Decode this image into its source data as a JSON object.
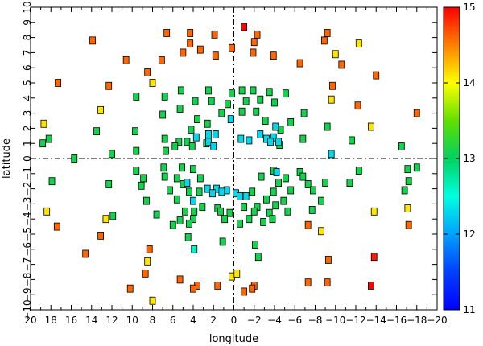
{
  "chart_data": {
    "type": "scatter",
    "title": "",
    "xlabel": "longitude",
    "ylabel": "latitude",
    "xlim": [
      20,
      -20
    ],
    "ylim": [
      -10,
      10
    ],
    "x_ticks": [
      20,
      18,
      16,
      14,
      12,
      10,
      8,
      6,
      4,
      2,
      0,
      -2,
      -4,
      -6,
      -8,
      -10,
      -12,
      -14,
      -16,
      -18,
      -20
    ],
    "x_tick_labels": [
      "20",
      "18",
      "16",
      "14",
      "12",
      "10",
      "8",
      "6",
      "4",
      "2",
      "0",
      "−2",
      "−4",
      "−6",
      "−8",
      "−10",
      "−12",
      "−14",
      "−16",
      "−18",
      "−20"
    ],
    "y_ticks": [
      -10,
      -9,
      -8,
      -7,
      -6,
      -5,
      -4,
      -3,
      -2,
      -1,
      0,
      1,
      2,
      3,
      4,
      5,
      6,
      7,
      8,
      9,
      10
    ],
    "y_tick_labels": [
      "−10",
      "−9",
      "−8",
      "−7",
      "−6",
      "−5",
      "−4",
      "−3",
      "−2",
      "−1",
      "0",
      "1",
      "2",
      "3",
      "4",
      "5",
      "6",
      "7",
      "8",
      "9",
      "10"
    ],
    "reference_lines": {
      "x": 0,
      "y": 0,
      "style": "dash-dot"
    },
    "grid": false,
    "legend": "none",
    "colorbar": {
      "position": "right",
      "range": [
        11,
        15
      ],
      "ticks": [
        11,
        12,
        13,
        14,
        15
      ],
      "tick_labels": [
        "11",
        "12",
        "13",
        "14",
        "15"
      ],
      "colormap": "jet"
    },
    "marker": "square",
    "points": [
      {
        "x": -1,
        "y": 8.7,
        "c": 15.0
      },
      {
        "x": -13.5,
        "y": -8.4,
        "c": 15.0
      },
      {
        "x": -13.8,
        "y": -6.5,
        "c": 14.9
      },
      {
        "x": 13.9,
        "y": 7.8,
        "c": 14.6
      },
      {
        "x": 6.6,
        "y": 8.3,
        "c": 14.6
      },
      {
        "x": 4.3,
        "y": 8.3,
        "c": 14.6
      },
      {
        "x": 1.9,
        "y": 8.2,
        "c": 14.6
      },
      {
        "x": -2.3,
        "y": 8.2,
        "c": 14.6
      },
      {
        "x": -9.2,
        "y": 8.3,
        "c": 14.6
      },
      {
        "x": -2.0,
        "y": 7.7,
        "c": 14.6
      },
      {
        "x": 4.3,
        "y": 7.6,
        "c": 14.6
      },
      {
        "x": 5.0,
        "y": 7.0,
        "c": 14.6
      },
      {
        "x": 3.3,
        "y": 7.2,
        "c": 14.6
      },
      {
        "x": 0.2,
        "y": 7.3,
        "c": 14.6
      },
      {
        "x": 1.8,
        "y": 6.8,
        "c": 14.6
      },
      {
        "x": -1.9,
        "y": 7.0,
        "c": 14.6
      },
      {
        "x": -3.9,
        "y": 6.8,
        "c": 14.6
      },
      {
        "x": -6.5,
        "y": 6.3,
        "c": 14.6
      },
      {
        "x": -8.9,
        "y": 7.8,
        "c": 14.6
      },
      {
        "x": 10.6,
        "y": 6.5,
        "c": 14.6
      },
      {
        "x": 7.1,
        "y": 6.5,
        "c": 14.6
      },
      {
        "x": -10.6,
        "y": 6.2,
        "c": 14.6
      },
      {
        "x": 8.5,
        "y": 5.7,
        "c": 14.6
      },
      {
        "x": -14.0,
        "y": 5.5,
        "c": 14.6
      },
      {
        "x": 17.3,
        "y": 5.0,
        "c": 14.6
      },
      {
        "x": 12.3,
        "y": 4.8,
        "c": 14.6
      },
      {
        "x": -9.7,
        "y": 4.8,
        "c": 14.6
      },
      {
        "x": -12.2,
        "y": 3.5,
        "c": 14.6
      },
      {
        "x": -18.0,
        "y": 3.0,
        "c": 14.6
      },
      {
        "x": 13.1,
        "y": -5.1,
        "c": 14.6
      },
      {
        "x": 17.4,
        "y": -4.5,
        "c": 14.6
      },
      {
        "x": -7.3,
        "y": -4.4,
        "c": 14.6
      },
      {
        "x": -17.2,
        "y": -4.4,
        "c": 14.6
      },
      {
        "x": 14.6,
        "y": -6.3,
        "c": 14.6
      },
      {
        "x": 8.3,
        "y": -6.0,
        "c": 14.6
      },
      {
        "x": 8.7,
        "y": -7.6,
        "c": 14.6
      },
      {
        "x": -9.3,
        "y": -6.7,
        "c": 14.6
      },
      {
        "x": 5.3,
        "y": -8.0,
        "c": 14.6
      },
      {
        "x": 3.6,
        "y": -8.4,
        "c": 14.6
      },
      {
        "x": 1.6,
        "y": -8.4,
        "c": 14.6
      },
      {
        "x": -2.0,
        "y": -8.4,
        "c": 14.6
      },
      {
        "x": -7.3,
        "y": -8.2,
        "c": 14.6
      },
      {
        "x": -9.2,
        "y": -8.2,
        "c": 14.6
      },
      {
        "x": 10.2,
        "y": -8.6,
        "c": 14.6
      },
      {
        "x": 4.0,
        "y": -8.6,
        "c": 14.6
      },
      {
        "x": -1.8,
        "y": -8.6,
        "c": 14.6
      },
      {
        "x": -1.0,
        "y": -8.8,
        "c": 14.6
      },
      {
        "x": -12.3,
        "y": 7.6,
        "c": 14.1
      },
      {
        "x": -10.0,
        "y": 6.9,
        "c": 14.1
      },
      {
        "x": 8.0,
        "y": 5.0,
        "c": 14.1
      },
      {
        "x": 13.1,
        "y": 3.2,
        "c": 14.1
      },
      {
        "x": -9.6,
        "y": 3.9,
        "c": 14.1
      },
      {
        "x": 18.7,
        "y": 2.3,
        "c": 14.1
      },
      {
        "x": -13.5,
        "y": 2.1,
        "c": 14.1
      },
      {
        "x": 18.4,
        "y": -3.5,
        "c": 14.1
      },
      {
        "x": 12.6,
        "y": -4.0,
        "c": 14.1
      },
      {
        "x": -13.8,
        "y": -3.5,
        "c": 14.1
      },
      {
        "x": -17.1,
        "y": -3.3,
        "c": 14.1
      },
      {
        "x": -8.6,
        "y": -4.8,
        "c": 14.1
      },
      {
        "x": 8.5,
        "y": -6.8,
        "c": 14.1
      },
      {
        "x": 0.2,
        "y": -7.8,
        "c": 14.1
      },
      {
        "x": 8.0,
        "y": -9.4,
        "c": 14.1
      },
      {
        "x": -0.3,
        "y": -7.6,
        "c": 14.1
      },
      {
        "x": 5.2,
        "y": 4.5,
        "c": 13.1
      },
      {
        "x": 2.5,
        "y": 4.5,
        "c": 13.1
      },
      {
        "x": 0.2,
        "y": 4.3,
        "c": 13.1
      },
      {
        "x": -0.8,
        "y": 4.5,
        "c": 13.1
      },
      {
        "x": -1.9,
        "y": 4.5,
        "c": 13.1
      },
      {
        "x": -3.5,
        "y": 4.4,
        "c": 13.1
      },
      {
        "x": -5.1,
        "y": 4.3,
        "c": 13.1
      },
      {
        "x": 9.6,
        "y": 4.1,
        "c": 13.1
      },
      {
        "x": 6.8,
        "y": 4.1,
        "c": 13.1
      },
      {
        "x": 3.8,
        "y": 3.8,
        "c": 13.1
      },
      {
        "x": 2.2,
        "y": 3.8,
        "c": 13.1
      },
      {
        "x": -1.2,
        "y": 3.8,
        "c": 13.1
      },
      {
        "x": -2.6,
        "y": 3.9,
        "c": 13.1
      },
      {
        "x": 0.6,
        "y": 3.6,
        "c": 13.1
      },
      {
        "x": -4.0,
        "y": 3.7,
        "c": 13.1
      },
      {
        "x": 5.3,
        "y": 3.3,
        "c": 13.1
      },
      {
        "x": 1.2,
        "y": 3.0,
        "c": 13.1
      },
      {
        "x": -0.8,
        "y": 3.1,
        "c": 13.1
      },
      {
        "x": -2.2,
        "y": 3.1,
        "c": 13.1
      },
      {
        "x": -6.9,
        "y": 3.0,
        "c": 13.1
      },
      {
        "x": 7.0,
        "y": 2.9,
        "c": 13.1
      },
      {
        "x": 3.6,
        "y": 2.6,
        "c": 13.1
      },
      {
        "x": -3.1,
        "y": 2.5,
        "c": 13.1
      },
      {
        "x": 2.6,
        "y": 2.3,
        "c": 13.1
      },
      {
        "x": -5.6,
        "y": 2.4,
        "c": 13.1
      },
      {
        "x": -9.2,
        "y": 2.1,
        "c": 13.1
      },
      {
        "x": 13.5,
        "y": 1.8,
        "c": 13.1
      },
      {
        "x": 9.7,
        "y": 1.8,
        "c": 13.1
      },
      {
        "x": 4.2,
        "y": 1.9,
        "c": 13.1
      },
      {
        "x": -4.6,
        "y": 1.9,
        "c": 13.1
      },
      {
        "x": 18.2,
        "y": 1.3,
        "c": 13.1
      },
      {
        "x": 6.8,
        "y": 1.3,
        "c": 13.1
      },
      {
        "x": 5.4,
        "y": 1.1,
        "c": 13.1
      },
      {
        "x": 4.6,
        "y": 1.1,
        "c": 13.1
      },
      {
        "x": -6.8,
        "y": 1.3,
        "c": 13.1
      },
      {
        "x": -11.6,
        "y": 1.2,
        "c": 13.1
      },
      {
        "x": 18.8,
        "y": 1.0,
        "c": 13.1
      },
      {
        "x": 2.7,
        "y": 1.0,
        "c": 13.1
      },
      {
        "x": -4.5,
        "y": 0.9,
        "c": 13.1
      },
      {
        "x": 5.8,
        "y": 0.8,
        "c": 13.1
      },
      {
        "x": 4.1,
        "y": 0.8,
        "c": 13.1
      },
      {
        "x": -16.5,
        "y": 0.8,
        "c": 13.1
      },
      {
        "x": 9.6,
        "y": 0.5,
        "c": 13.1
      },
      {
        "x": 6.7,
        "y": 0.5,
        "c": 13.1
      },
      {
        "x": 12.0,
        "y": 0.3,
        "c": 13.1
      },
      {
        "x": 15.7,
        "y": 0.0,
        "c": 13.1
      },
      {
        "x": 9.6,
        "y": -0.8,
        "c": 13.1
      },
      {
        "x": 6.9,
        "y": -0.6,
        "c": 13.1
      },
      {
        "x": 5.1,
        "y": -0.6,
        "c": 13.1
      },
      {
        "x": 4.0,
        "y": -0.7,
        "c": 13.1
      },
      {
        "x": -3.9,
        "y": -0.8,
        "c": 13.1
      },
      {
        "x": -6.5,
        "y": -0.9,
        "c": 13.1
      },
      {
        "x": -12.3,
        "y": -0.8,
        "c": 13.1
      },
      {
        "x": -17.1,
        "y": -0.7,
        "c": 13.1
      },
      {
        "x": -18.0,
        "y": -0.6,
        "c": 13.1
      },
      {
        "x": 8.9,
        "y": -1.3,
        "c": 13.1
      },
      {
        "x": 6.8,
        "y": -1.2,
        "c": 13.1
      },
      {
        "x": 5.6,
        "y": -1.3,
        "c": 13.1
      },
      {
        "x": 3.3,
        "y": -1.3,
        "c": 13.1
      },
      {
        "x": -2.7,
        "y": -1.2,
        "c": 13.1
      },
      {
        "x": -5.1,
        "y": -1.3,
        "c": 13.1
      },
      {
        "x": -6.8,
        "y": -1.2,
        "c": 13.1
      },
      {
        "x": 17.9,
        "y": -1.5,
        "c": 13.1
      },
      {
        "x": 12.3,
        "y": -1.7,
        "c": 13.1
      },
      {
        "x": 9.1,
        "y": -1.8,
        "c": 13.1
      },
      {
        "x": 5.0,
        "y": -1.7,
        "c": 13.1
      },
      {
        "x": -4.4,
        "y": -1.6,
        "c": 13.1
      },
      {
        "x": -7.3,
        "y": -1.7,
        "c": 13.1
      },
      {
        "x": -9.0,
        "y": -1.6,
        "c": 13.1
      },
      {
        "x": -11.4,
        "y": -1.6,
        "c": 13.1
      },
      {
        "x": -17.2,
        "y": -1.5,
        "c": 13.1
      },
      {
        "x": 6.3,
        "y": -2.1,
        "c": 13.1
      },
      {
        "x": 4.4,
        "y": -2.2,
        "c": 13.1
      },
      {
        "x": 3.4,
        "y": -2.2,
        "c": 13.1
      },
      {
        "x": -1.8,
        "y": -2.2,
        "c": 13.1
      },
      {
        "x": -3.9,
        "y": -2.2,
        "c": 13.1
      },
      {
        "x": -5.6,
        "y": -2.1,
        "c": 13.1
      },
      {
        "x": -7.8,
        "y": -2.1,
        "c": 13.1
      },
      {
        "x": -16.8,
        "y": -2.1,
        "c": 13.1
      },
      {
        "x": 8.6,
        "y": -2.8,
        "c": 13.1
      },
      {
        "x": 5.6,
        "y": -2.7,
        "c": 13.1
      },
      {
        "x": -3.2,
        "y": -2.7,
        "c": 13.1
      },
      {
        "x": -4.9,
        "y": -2.8,
        "c": 13.1
      },
      {
        "x": -8.6,
        "y": -2.8,
        "c": 13.1
      },
      {
        "x": 3.1,
        "y": -3.2,
        "c": 13.1
      },
      {
        "x": 1.6,
        "y": -3.3,
        "c": 13.1
      },
      {
        "x": -1.0,
        "y": -3.2,
        "c": 13.1
      },
      {
        "x": -2.3,
        "y": -3.2,
        "c": 13.1
      },
      {
        "x": -4.1,
        "y": -3.1,
        "c": 13.1
      },
      {
        "x": 7.6,
        "y": -3.7,
        "c": 13.1
      },
      {
        "x": 4.8,
        "y": -3.5,
        "c": 13.1
      },
      {
        "x": 3.9,
        "y": -3.5,
        "c": 13.1
      },
      {
        "x": 1.3,
        "y": -3.5,
        "c": 13.1
      },
      {
        "x": 0.4,
        "y": -3.6,
        "c": 13.1
      },
      {
        "x": -2.0,
        "y": -3.5,
        "c": 13.1
      },
      {
        "x": -3.5,
        "y": -3.6,
        "c": 13.1
      },
      {
        "x": -5.3,
        "y": -3.5,
        "c": 13.1
      },
      {
        "x": -7.7,
        "y": -3.4,
        "c": 13.1
      },
      {
        "x": 11.9,
        "y": -3.8,
        "c": 13.1
      },
      {
        "x": 5.3,
        "y": -4.1,
        "c": 13.1
      },
      {
        "x": 4.0,
        "y": -4.0,
        "c": 13.1
      },
      {
        "x": 0.9,
        "y": -4.0,
        "c": 13.1
      },
      {
        "x": -1.5,
        "y": -4.0,
        "c": 13.1
      },
      {
        "x": -3.8,
        "y": -4.0,
        "c": 13.1
      },
      {
        "x": 6.0,
        "y": -4.4,
        "c": 13.1
      },
      {
        "x": 4.4,
        "y": -4.3,
        "c": 13.1
      },
      {
        "x": -0.6,
        "y": -4.3,
        "c": 13.1
      },
      {
        "x": -2.9,
        "y": -4.2,
        "c": 13.1
      },
      {
        "x": 4.5,
        "y": -5.2,
        "c": 13.1
      },
      {
        "x": 1.1,
        "y": -5.5,
        "c": 13.1
      },
      {
        "x": -2.1,
        "y": -5.7,
        "c": 13.1
      },
      {
        "x": -2.4,
        "y": -6.5,
        "c": 13.1
      },
      {
        "x": 3.9,
        "y": -6.0,
        "c": 12.6
      },
      {
        "x": -4.1,
        "y": 2.1,
        "c": 12.3
      },
      {
        "x": 3.7,
        "y": 1.4,
        "c": 12.3
      },
      {
        "x": 2.5,
        "y": 1.6,
        "c": 12.3
      },
      {
        "x": 1.8,
        "y": 1.6,
        "c": 12.3
      },
      {
        "x": 0.3,
        "y": 2.6,
        "c": 12.3
      },
      {
        "x": -2.6,
        "y": 1.6,
        "c": 12.3
      },
      {
        "x": -3.2,
        "y": 1.3,
        "c": 12.3
      },
      {
        "x": -3.9,
        "y": 1.4,
        "c": 12.3
      },
      {
        "x": -0.7,
        "y": 1.3,
        "c": 12.3
      },
      {
        "x": 2.5,
        "y": 1.1,
        "c": 12.3
      },
      {
        "x": 2.0,
        "y": 0.8,
        "c": 12.3
      },
      {
        "x": -1.5,
        "y": 1.2,
        "c": 12.3
      },
      {
        "x": -3.6,
        "y": 1.1,
        "c": 12.3
      },
      {
        "x": -4.4,
        "y": 1.1,
        "c": 12.3
      },
      {
        "x": -9.6,
        "y": 0.3,
        "c": 12.3
      },
      {
        "x": -4.2,
        "y": -0.9,
        "c": 12.3
      },
      {
        "x": 4.6,
        "y": -1.6,
        "c": 12.3
      },
      {
        "x": 2.6,
        "y": -2.0,
        "c": 12.3
      },
      {
        "x": 1.7,
        "y": -2.0,
        "c": 12.3
      },
      {
        "x": 0.7,
        "y": -2.1,
        "c": 12.3
      },
      {
        "x": 2.1,
        "y": -2.3,
        "c": 12.3
      },
      {
        "x": 1.2,
        "y": -2.2,
        "c": 12.3
      },
      {
        "x": -0.2,
        "y": -2.3,
        "c": 12.3
      },
      {
        "x": -0.6,
        "y": -2.5,
        "c": 12.3
      },
      {
        "x": -1.2,
        "y": -2.5,
        "c": 12.3
      },
      {
        "x": 4.0,
        "y": -2.8,
        "c": 12.3
      }
    ]
  }
}
